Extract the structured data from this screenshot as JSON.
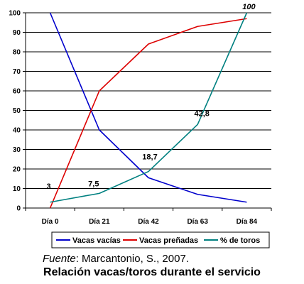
{
  "chart_data": {
    "type": "line",
    "categories": [
      "Día 0",
      "Día 21",
      "Día 42",
      "Día 63",
      "Día 84"
    ],
    "series": [
      {
        "name": "Vacas vacías",
        "color": "#0000cc",
        "values": [
          100,
          40,
          15.5,
          7,
          3
        ]
      },
      {
        "name": "Vacas preñadas",
        "color": "#dd0000",
        "values": [
          0,
          60,
          84,
          93,
          97
        ]
      },
      {
        "name": "% de toros",
        "color": "#008080",
        "values": [
          3,
          7.5,
          18.7,
          42.8,
          100
        ]
      }
    ],
    "data_labels": [
      "3",
      "7,5",
      "18,7",
      "42,8",
      "100"
    ],
    "data_labels_series": "% de toros",
    "ylim": [
      0,
      100
    ],
    "yticks": [
      "0",
      "10",
      "20",
      "30",
      "40",
      "50",
      "60",
      "70",
      "80",
      "90",
      "100"
    ],
    "grid": "horizontal",
    "legend": "bottom",
    "title": "Relación vacas/toros durante el servicio",
    "source_prefix": "Fuente",
    "source_text": ": Marcantonio, S., 2007."
  }
}
